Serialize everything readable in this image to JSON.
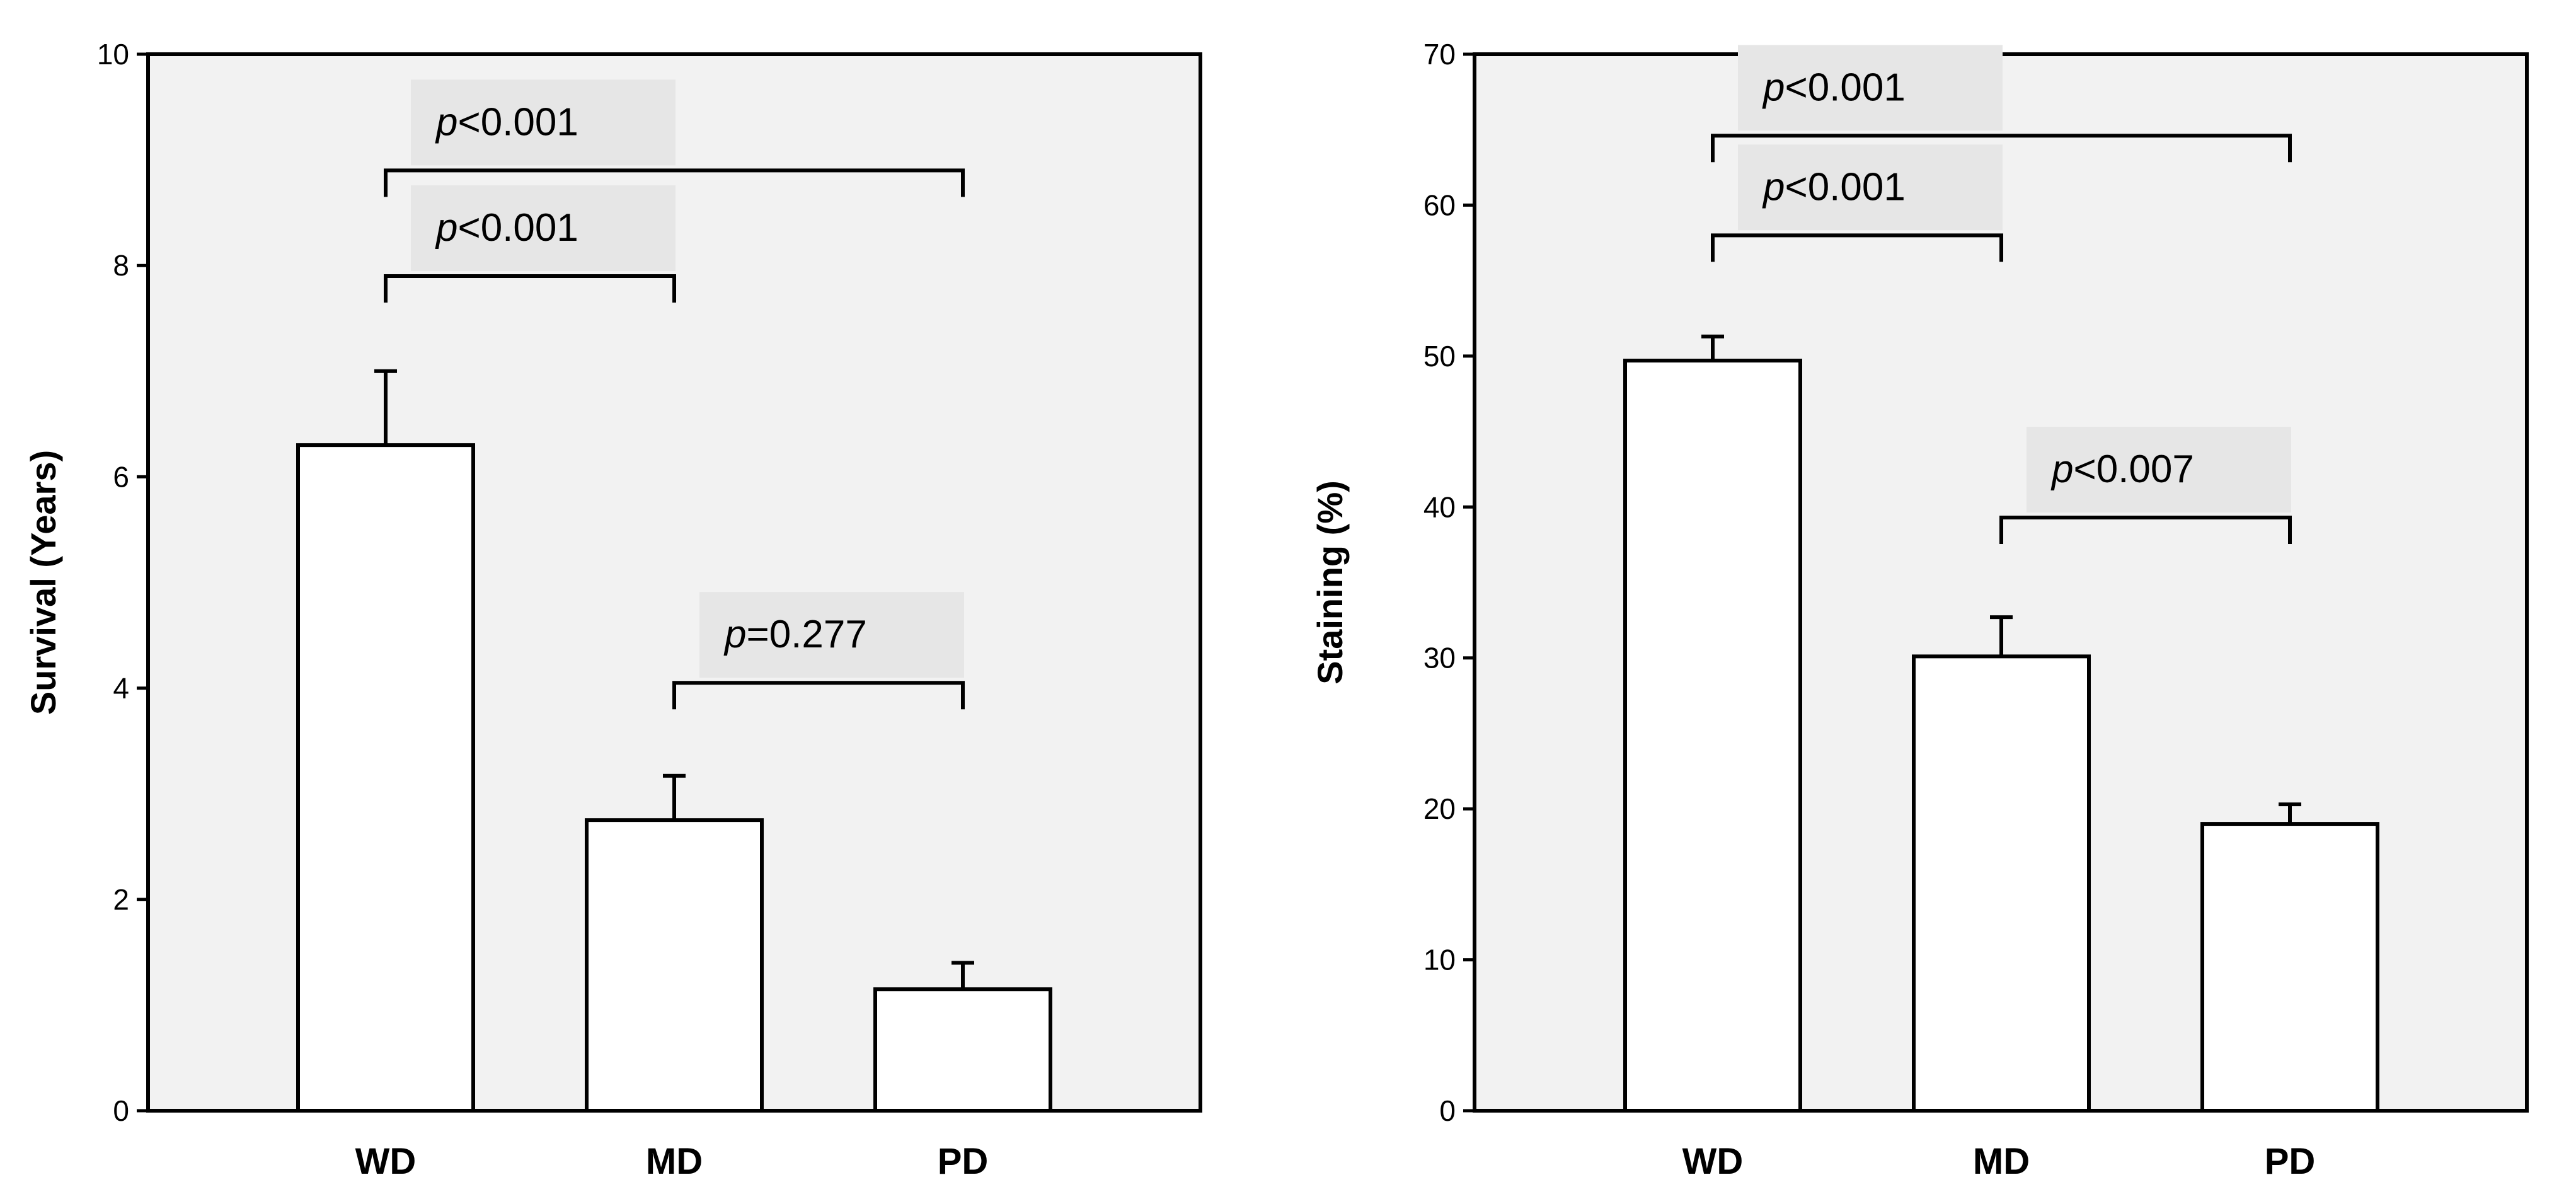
{
  "chart_data": [
    {
      "type": "bar",
      "title": "",
      "xlabel": "",
      "ylabel": "Survival (Years)",
      "categories": [
        "WD",
        "MD",
        "PD"
      ],
      "values": [
        6.3,
        2.75,
        1.15
      ],
      "errors": [
        0.7,
        0.42,
        0.25
      ],
      "ylim": [
        0,
        10
      ],
      "yticks": [
        0,
        2,
        4,
        6,
        8,
        10
      ],
      "yticks_labels": [
        "0",
        "2",
        "4",
        "6",
        "8",
        "10"
      ],
      "grid": false,
      "background_color": "#f2f2f2",
      "bar_color": "#ffffff",
      "annotations": [
        {
          "from": 0,
          "to": 1,
          "y": 7.9,
          "p_symbol": "p",
          "p_value": "<0.001"
        },
        {
          "from": 0,
          "to": 2,
          "y": 8.9,
          "p_symbol": "p",
          "p_value": "<0.001"
        },
        {
          "from": 1,
          "to": 2,
          "y": 4.05,
          "p_symbol": "p",
          "p_value": "=0.277"
        }
      ]
    },
    {
      "type": "bar",
      "title": "",
      "xlabel": "",
      "ylabel": "Staining (%)",
      "categories": [
        "WD",
        "MD",
        "PD"
      ],
      "values": [
        49.7,
        30.1,
        19.0
      ],
      "errors": [
        1.6,
        2.6,
        1.3
      ],
      "ylim": [
        0,
        70
      ],
      "yticks": [
        0,
        10,
        20,
        30,
        40,
        50,
        60,
        70
      ],
      "yticks_labels": [
        "0",
        "10",
        "20",
        "30",
        "40",
        "50",
        "60",
        "70"
      ],
      "grid": false,
      "background_color": "#f2f2f2",
      "bar_color": "#ffffff",
      "annotations": [
        {
          "from": 0,
          "to": 1,
          "y": 58.0,
          "p_symbol": "p",
          "p_value": "<0.001"
        },
        {
          "from": 0,
          "to": 2,
          "y": 64.6,
          "p_symbol": "p",
          "p_value": "<0.001"
        },
        {
          "from": 1,
          "to": 2,
          "y": 39.3,
          "p_symbol": "p",
          "p_value": "<0.007"
        }
      ]
    }
  ]
}
